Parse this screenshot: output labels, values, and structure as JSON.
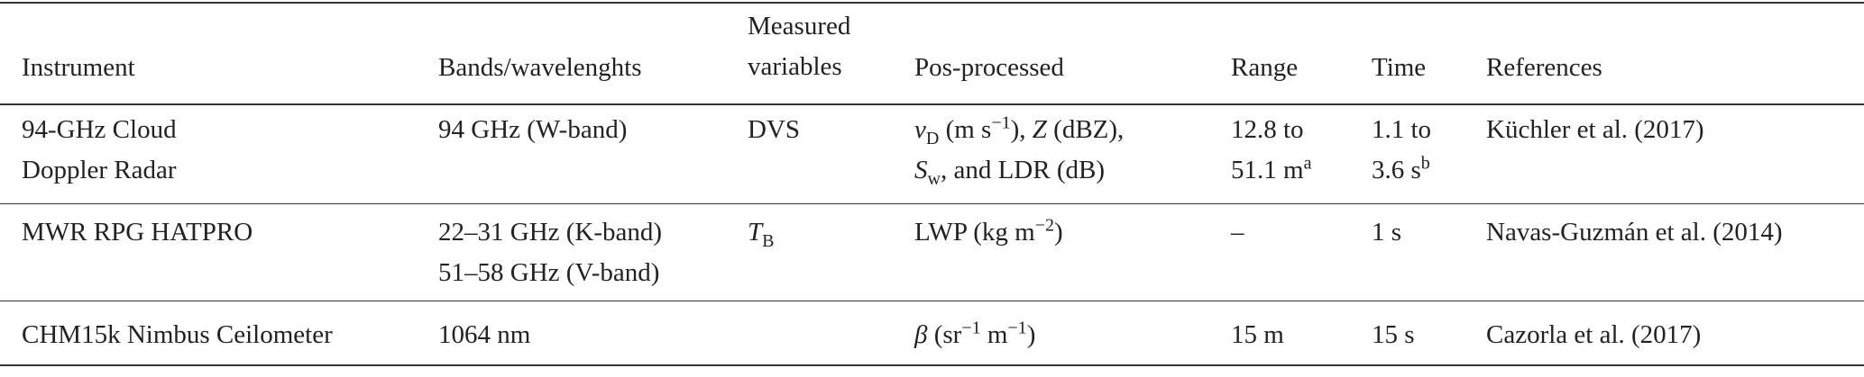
{
  "table": {
    "header": [
      "Instrument",
      "Bands/wavelenghts",
      [
        "Measured",
        "variables"
      ],
      "Pos-processed",
      "Range",
      "Time",
      "References"
    ],
    "rows": [
      [
        [
          "94-GHz Cloud",
          "Doppler Radar"
        ],
        [
          "94 GHz (W-band)"
        ],
        [
          "DVS"
        ],
        [
          "ν",
          "D",
          " (m s",
          "−1",
          "), ",
          "Z",
          " (dBZ),",
          "S",
          "w",
          ", and LDR (dB)"
        ],
        [
          "12.8 to",
          "51.1 m",
          "a"
        ],
        [
          "1.1 to",
          "3.6 s",
          "b"
        ],
        [
          "Küchler et al. (2017)"
        ]
      ],
      [
        [
          "MWR RPG HATPRO"
        ],
        [
          "22–31 GHz (K-band)",
          "51–58 GHz (V-band)"
        ],
        [
          "T",
          "B"
        ],
        [
          "LWP (kg m",
          "−2",
          ")"
        ],
        [
          "–"
        ],
        [
          "1 s"
        ],
        [
          "Navas-Guzmán et al. (2014)"
        ]
      ],
      [
        [
          "CHM15k Nimbus Ceilometer"
        ],
        [
          "1064 nm"
        ],
        [],
        [
          "β",
          " (sr",
          "−1",
          " m",
          "−1",
          ")"
        ],
        [
          "15 m"
        ],
        [
          "15 s"
        ],
        [
          "Cazorla et al. (2017)"
        ]
      ]
    ]
  }
}
